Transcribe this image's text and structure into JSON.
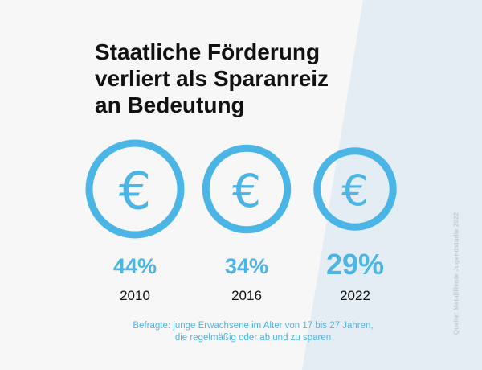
{
  "title": {
    "line1": "Staatliche Förderung",
    "line2": "verliert als Sparanreiz",
    "line3": "an Bedeutung"
  },
  "note": {
    "line1": "Befragte: junge Erwachsene im Alter von 17 bis 27 Jahren,",
    "line2": "die regelmäßig oder ab und zu sparen"
  },
  "source": "Quelle: MetallRente Jugendstudie 2022",
  "icon_symbol": "€",
  "colors": {
    "accent": "#4bb5e6",
    "background": "#f7f7f8",
    "background_accent": "#e5edf4",
    "text": "#111111",
    "source": "#c4ccd3"
  },
  "chart_data": {
    "type": "bar",
    "categories": [
      "2010",
      "2016",
      "2022"
    ],
    "values": [
      44,
      34,
      29
    ],
    "value_labels": [
      "44%",
      "34%",
      "29%"
    ],
    "unit": "%",
    "title": "Staatliche Förderung verliert als Sparanreiz an Bedeutung",
    "xlabel": "",
    "ylabel": ""
  }
}
